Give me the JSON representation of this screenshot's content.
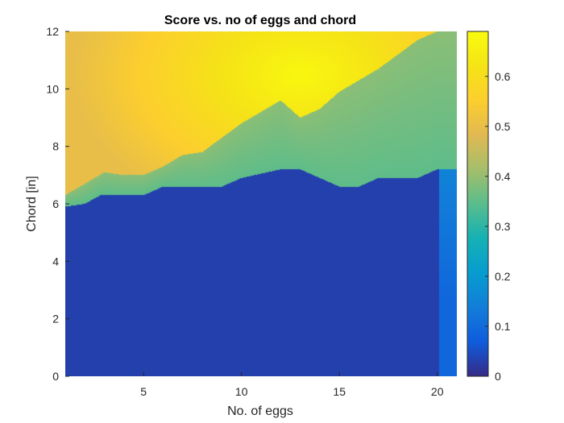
{
  "chart_data": {
    "type": "heatmap",
    "title": "Score vs. no of eggs and chord",
    "xlabel": "No. of eggs",
    "ylabel": "Chord [in]",
    "xlim": [
      1,
      21
    ],
    "ylim": [
      0,
      12
    ],
    "xticks": [
      5,
      10,
      15,
      20
    ],
    "yticks": [
      0,
      2,
      4,
      6,
      8,
      10,
      12
    ],
    "colorbar": {
      "lim": [
        0,
        0.69
      ],
      "ticks": [
        0,
        0.1,
        0.2,
        0.3,
        0.4,
        0.5,
        0.6
      ],
      "colormap": "parula"
    },
    "grid": false,
    "regions": {
      "low_boundary": {
        "x": [
          1,
          2,
          2.8,
          3,
          5,
          6,
          9,
          10,
          12,
          13,
          15,
          16,
          17,
          19,
          20,
          20.5
        ],
        "chord": [
          5.9,
          6.0,
          6.3,
          6.3,
          6.3,
          6.6,
          6.6,
          6.9,
          7.2,
          7.2,
          6.6,
          6.6,
          6.9,
          6.9,
          7.2,
          7.2
        ]
      },
      "mid_boundary": {
        "x": [
          1,
          2,
          3,
          4,
          5,
          6,
          7,
          8,
          9,
          10,
          11,
          12,
          13,
          14,
          15,
          16,
          17,
          18,
          19,
          20
        ],
        "chord": [
          6.3,
          6.7,
          7.1,
          7.0,
          7.0,
          7.3,
          7.7,
          7.8,
          8.3,
          8.8,
          9.2,
          9.6,
          9.0,
          9.3,
          9.9,
          10.3,
          10.7,
          11.2,
          11.7,
          12.0
        ]
      },
      "low_score": 0.03,
      "mid_score": 0.35,
      "peak_score": 0.68,
      "peak_location": [
        13,
        10.5
      ]
    }
  }
}
